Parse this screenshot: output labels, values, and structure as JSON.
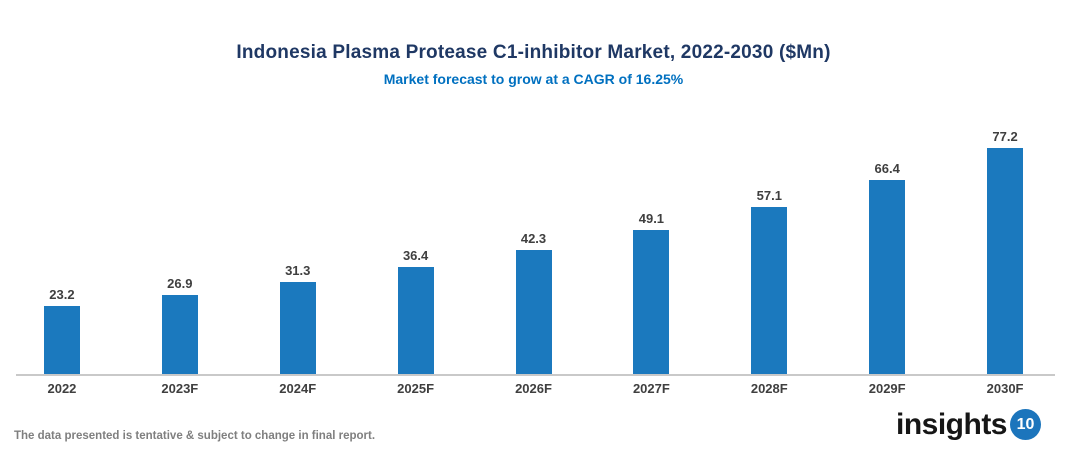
{
  "chart": {
    "title": "Indonesia Plasma Protease C1-inhibitor Market, 2022-2030 ($Mn)",
    "subtitle": "Market forecast to grow at a CAGR of 16.25%"
  },
  "chart_data": {
    "type": "bar",
    "categories": [
      "2022",
      "2023F",
      "2024F",
      "2025F",
      "2026F",
      "2027F",
      "2028F",
      "2029F",
      "2030F"
    ],
    "values": [
      23.2,
      26.9,
      31.3,
      36.4,
      42.3,
      49.1,
      57.1,
      66.4,
      77.2
    ],
    "title": "Indonesia Plasma Protease C1-inhibitor Market, 2022-2030 ($Mn)",
    "subtitle": "Market forecast to grow at a CAGR of 16.25%",
    "xlabel": "",
    "ylabel": "",
    "ylim": [
      0,
      85
    ],
    "grid": false,
    "legend": false,
    "value_labels": true,
    "bar_color": "#1B79BE"
  },
  "footer": {
    "note": "The data presented is tentative & subject to change in final report.",
    "logo_text": "insights",
    "logo_number": "10"
  },
  "colors": {
    "title": "#1F3864",
    "subtitle": "#0070C0",
    "bar": "#1B79BE",
    "value_label": "#3F3F3F",
    "axis_line": "#C9C9C9",
    "note": "#7F7F7F",
    "logo_circle": "#1C75BC"
  }
}
